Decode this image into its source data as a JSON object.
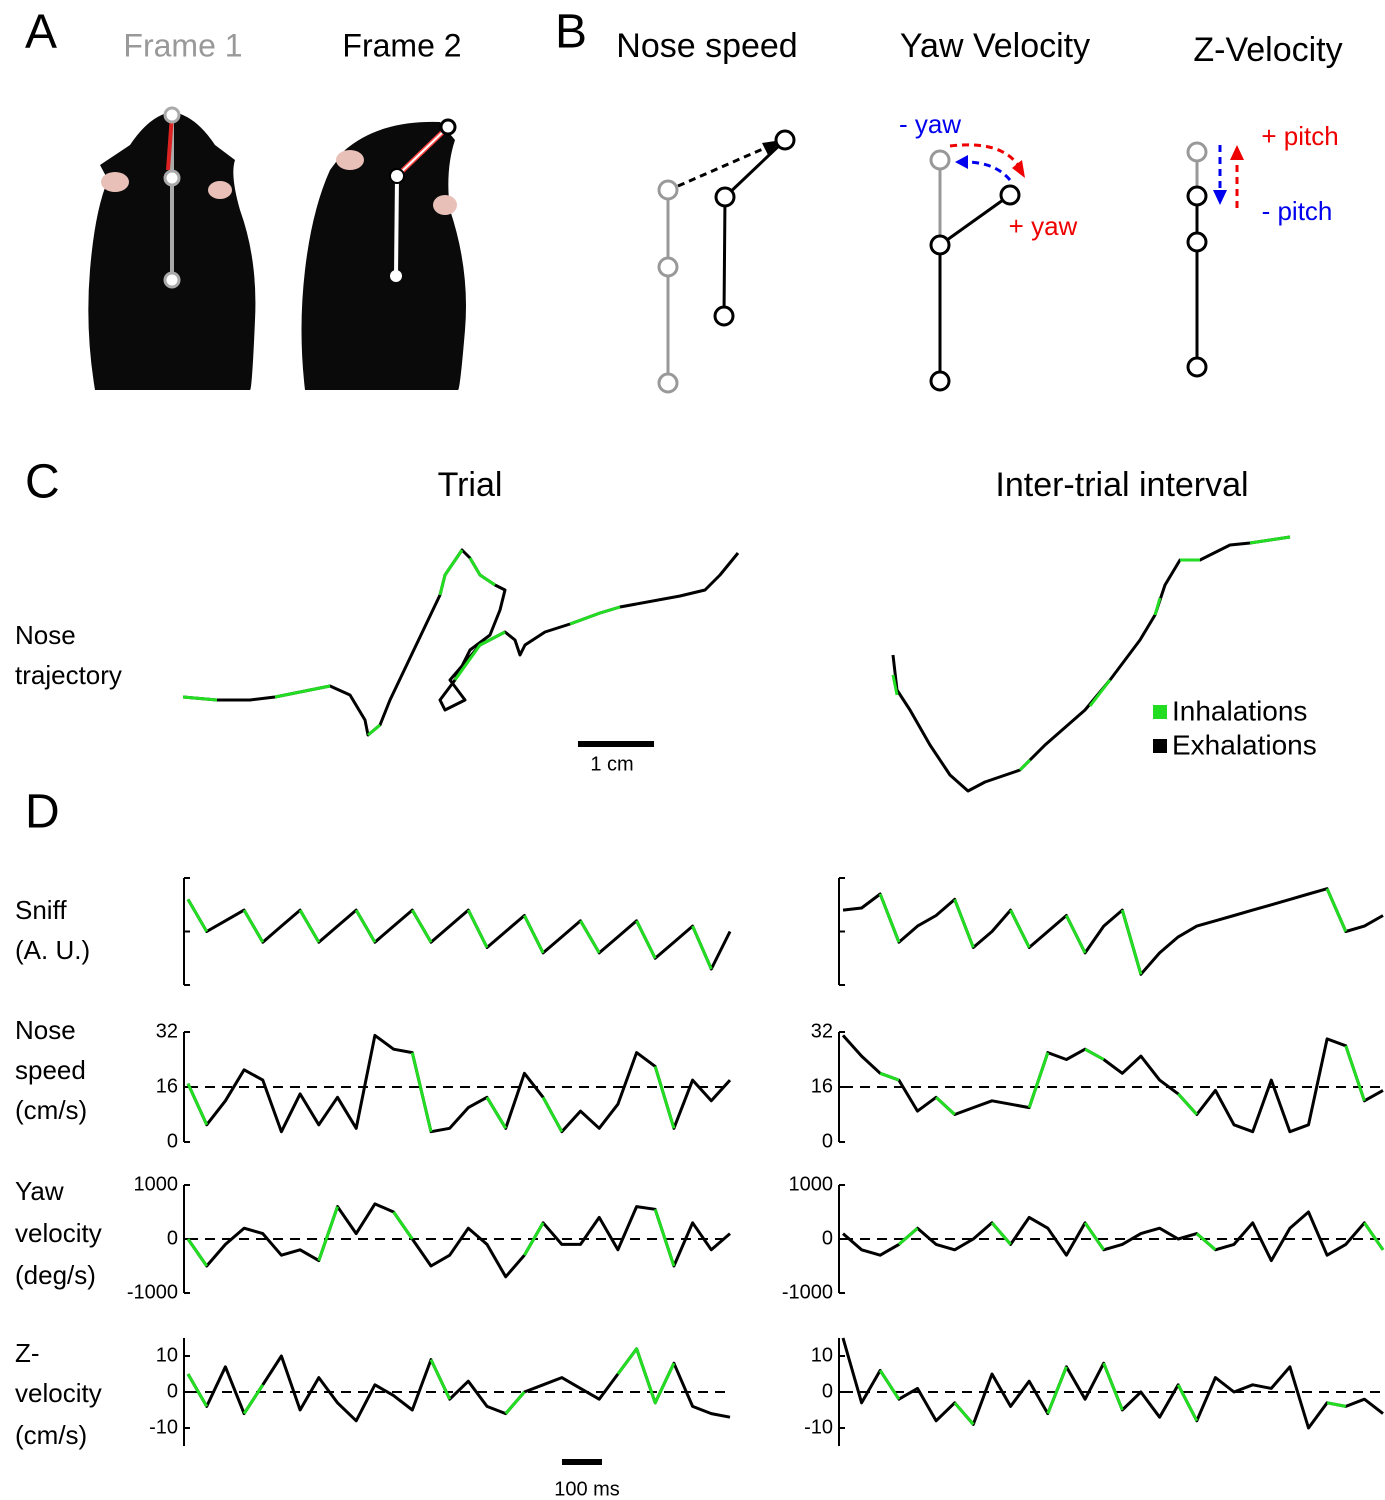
{
  "panels": {
    "a": {
      "letter": "A",
      "frame1": "Frame 1",
      "frame2": "Frame 2"
    },
    "b": {
      "letter": "B",
      "nose_speed": "Nose speed",
      "yaw_velocity": "Yaw Velocity",
      "z_velocity": "Z-Velocity",
      "minus_yaw": "- yaw",
      "plus_yaw": "+ yaw",
      "plus_pitch": "+ pitch",
      "minus_pitch": "- pitch"
    },
    "c": {
      "letter": "C",
      "trial": "Trial",
      "iti": "Inter-trial interval",
      "ylabel": [
        "Nose",
        "trajectory"
      ],
      "inhalations": "Inhalations",
      "exhalations": "Exhalations",
      "scale": "1 cm"
    },
    "d": {
      "letter": "D",
      "scale": "100 ms"
    }
  },
  "chart_data": [
    {
      "type": "line",
      "ylabel": [
        "Sniff",
        "(A. U.)"
      ],
      "ylim": [
        0,
        1
      ],
      "series": [
        {
          "color": "#000000",
          "values": [
            0.8,
            0.5,
            0.6,
            0.7,
            0.4,
            0.55,
            0.7,
            0.4,
            0.55,
            0.7,
            0.4,
            0.55,
            0.7,
            0.4,
            0.55,
            0.7,
            0.35,
            0.5,
            0.65,
            0.3,
            0.45,
            0.6,
            0.3,
            0.45,
            0.6,
            0.25,
            0.4,
            0.55,
            0.15,
            0.5
          ]
        },
        {
          "color": "#22dd22",
          "values": [
            0.8,
            0.5,
            null,
            0.7,
            0.4,
            null,
            0.7,
            0.4,
            null,
            0.7,
            0.4,
            null,
            0.7,
            0.4,
            null,
            0.7,
            0.35,
            null,
            0.65,
            0.3,
            null,
            0.6,
            0.3,
            null,
            0.6,
            0.25,
            null,
            0.55,
            0.15,
            null
          ]
        }
      ]
    },
    {
      "type": "line",
      "ylim": [
        0,
        1
      ],
      "series": [
        {
          "color": "#000000",
          "values": [
            0.7,
            0.72,
            0.85,
            0.4,
            0.55,
            0.65,
            0.8,
            0.35,
            0.5,
            0.7,
            0.35,
            0.5,
            0.65,
            0.3,
            0.55,
            0.7,
            0.1,
            0.3,
            0.45,
            0.55,
            0.6,
            0.65,
            0.7,
            0.75,
            0.8,
            0.85,
            0.9,
            0.5,
            0.55,
            0.65
          ]
        },
        {
          "color": "#22dd22",
          "values": [
            null,
            null,
            0.85,
            0.4,
            null,
            null,
            0.8,
            0.35,
            null,
            0.7,
            0.35,
            null,
            0.65,
            0.3,
            null,
            0.7,
            0.1,
            null,
            null,
            null,
            null,
            null,
            null,
            null,
            null,
            null,
            0.9,
            0.5,
            null,
            null
          ]
        }
      ]
    },
    {
      "type": "line",
      "ylabel": [
        "Nose",
        "speed",
        "(cm/s)"
      ],
      "ylim": [
        0,
        32
      ],
      "yticks": [
        0,
        16,
        32
      ],
      "refline": 16,
      "series": [
        {
          "color": "#000000",
          "values": [
            17,
            5,
            12,
            21,
            18,
            3,
            14,
            5,
            13,
            4,
            31,
            27,
            26,
            3,
            4,
            10,
            13,
            4,
            20,
            13,
            3,
            9,
            4,
            11,
            26,
            22,
            4,
            18,
            12,
            18
          ]
        },
        {
          "color": "#22dd22",
          "values": [
            17,
            5,
            null,
            null,
            null,
            null,
            null,
            null,
            null,
            null,
            null,
            null,
            26,
            3,
            null,
            null,
            13,
            4,
            null,
            13,
            3,
            null,
            null,
            null,
            null,
            22,
            4,
            null,
            null,
            null
          ]
        }
      ]
    },
    {
      "type": "line",
      "ylim": [
        0,
        32
      ],
      "yticks": [
        0,
        16,
        32
      ],
      "refline": 16,
      "series": [
        {
          "color": "#000000",
          "values": [
            31,
            25,
            20,
            18,
            9,
            13,
            8,
            10,
            12,
            11,
            10,
            26,
            24,
            27,
            24,
            20,
            25,
            18,
            14,
            8,
            15,
            5,
            3,
            18,
            3,
            5,
            30,
            28,
            12,
            15
          ]
        },
        {
          "color": "#22dd22",
          "values": [
            null,
            null,
            20,
            18,
            null,
            13,
            8,
            null,
            null,
            null,
            10,
            26,
            null,
            27,
            24,
            null,
            null,
            null,
            14,
            8,
            null,
            null,
            null,
            null,
            null,
            null,
            null,
            28,
            12,
            null
          ]
        }
      ]
    },
    {
      "type": "line",
      "ylabel": [
        "Yaw",
        "velocity",
        "(deg/s)"
      ],
      "ylim": [
        -1000,
        1000
      ],
      "yticks": [
        -1000,
        0,
        1000
      ],
      "refline": 0,
      "series": [
        {
          "color": "#000000",
          "values": [
            0,
            -500,
            -100,
            200,
            100,
            -300,
            -200,
            -400,
            600,
            100,
            650,
            500,
            0,
            -500,
            -300,
            200,
            -100,
            -700,
            -300,
            300,
            -100,
            -100,
            400,
            -200,
            600,
            550,
            -500,
            300,
            -200,
            100
          ]
        },
        {
          "color": "#22dd22",
          "values": [
            0,
            -500,
            null,
            null,
            null,
            null,
            null,
            -400,
            600,
            null,
            null,
            500,
            0,
            null,
            null,
            null,
            null,
            null,
            -300,
            300,
            null,
            null,
            null,
            null,
            null,
            550,
            -500,
            null,
            null,
            null
          ]
        }
      ]
    },
    {
      "type": "line",
      "ylim": [
        -1000,
        1000
      ],
      "yticks": [
        -1000,
        0,
        1000
      ],
      "refline": 0,
      "series": [
        {
          "color": "#000000",
          "values": [
            100,
            -200,
            -300,
            -100,
            200,
            -100,
            -200,
            0,
            300,
            -100,
            400,
            200,
            -300,
            300,
            -200,
            -100,
            100,
            200,
            0,
            100,
            -200,
            -100,
            300,
            -400,
            200,
            500,
            -300,
            -100,
            300,
            -200
          ]
        },
        {
          "color": "#22dd22",
          "values": [
            null,
            null,
            null,
            -100,
            200,
            null,
            null,
            null,
            300,
            -100,
            null,
            null,
            null,
            300,
            -200,
            null,
            null,
            null,
            null,
            100,
            -200,
            null,
            null,
            null,
            null,
            null,
            null,
            null,
            300,
            -200
          ]
        }
      ]
    },
    {
      "type": "line",
      "ylabel": [
        "Z-",
        "velocity",
        "(cm/s)"
      ],
      "ylim": [
        -15,
        15
      ],
      "yticks": [
        -10,
        0,
        10
      ],
      "refline": 0,
      "series": [
        {
          "color": "#000000",
          "values": [
            5,
            -4,
            7,
            -6,
            2,
            10,
            -5,
            4,
            -3,
            -8,
            2,
            -1,
            -5,
            9,
            -2,
            3,
            -4,
            -6,
            0,
            2,
            4,
            1,
            -2,
            5,
            12,
            -3,
            8,
            -4,
            -6,
            -7
          ]
        },
        {
          "color": "#22dd22",
          "values": [
            5,
            -4,
            null,
            -6,
            2,
            null,
            null,
            null,
            null,
            null,
            null,
            null,
            null,
            9,
            -2,
            null,
            null,
            -6,
            0,
            null,
            null,
            null,
            null,
            5,
            12,
            -3,
            8,
            null,
            null,
            null
          ]
        }
      ]
    },
    {
      "type": "line",
      "ylim": [
        -15,
        15
      ],
      "yticks": [
        -10,
        0,
        10
      ],
      "refline": 0,
      "series": [
        {
          "color": "#000000",
          "values": [
            15,
            -3,
            6,
            -2,
            1,
            -8,
            -3,
            -9,
            5,
            -4,
            3,
            -6,
            7,
            -2,
            8,
            -5,
            0,
            -7,
            2,
            -8,
            4,
            0,
            2,
            1,
            7,
            -10,
            -3,
            -4,
            -2,
            -6
          ]
        },
        {
          "color": "#22dd22",
          "values": [
            null,
            null,
            6,
            -2,
            null,
            null,
            -3,
            -9,
            null,
            null,
            null,
            -6,
            7,
            null,
            8,
            -5,
            null,
            null,
            2,
            -8,
            null,
            null,
            null,
            null,
            null,
            null,
            -3,
            -4,
            null,
            null
          ]
        }
      ]
    }
  ]
}
